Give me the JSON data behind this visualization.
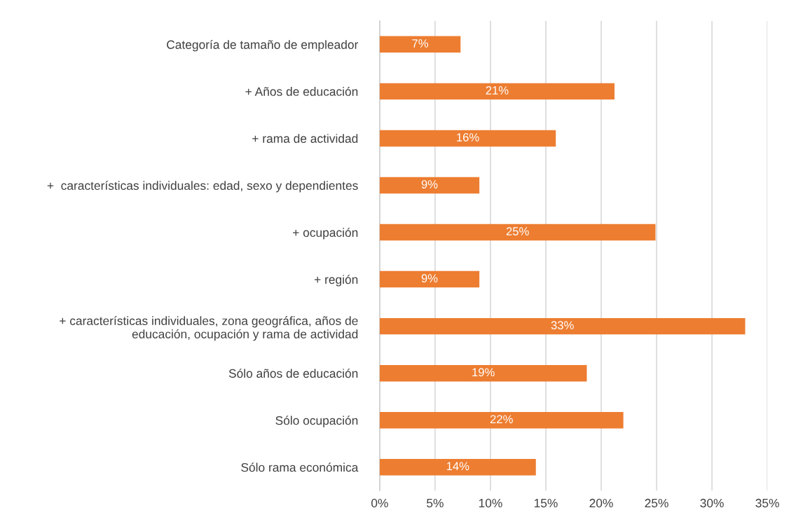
{
  "chart_data": {
    "type": "bar",
    "orientation": "horizontal",
    "categories": [
      "Categoría de tamaño de empleador",
      "+ Años de educación",
      "+ rama de actividad",
      "+  características individuales: edad, sexo y dependientes",
      "+ ocupación",
      "+ región",
      "+ características individuales, zona geográfica, años de\neducación, ocupación y rama de actividad",
      "Sólo años de educación",
      "Sólo ocupación",
      "Sólo rama económica"
    ],
    "values": [
      7.3,
      21.2,
      15.9,
      9.0,
      24.9,
      9.0,
      33.0,
      18.7,
      22.0,
      14.1
    ],
    "value_labels": [
      "7%",
      "21%",
      "16%",
      "9%",
      "25%",
      "9%",
      "33%",
      "19%",
      "22%",
      "14%"
    ],
    "color": "#ed7d31",
    "xlim": [
      0,
      35
    ],
    "xticks": [
      {
        "value": 0,
        "label": "0%"
      },
      {
        "value": 5,
        "label": "5%"
      },
      {
        "value": 10,
        "label": "10%"
      },
      {
        "value": 15,
        "label": "15%"
      },
      {
        "value": 20,
        "label": "20%"
      },
      {
        "value": 25,
        "label": "25%"
      },
      {
        "value": 30,
        "label": "30%"
      },
      {
        "value": 35,
        "label": "35%"
      }
    ],
    "grid": "x",
    "legend": false
  }
}
